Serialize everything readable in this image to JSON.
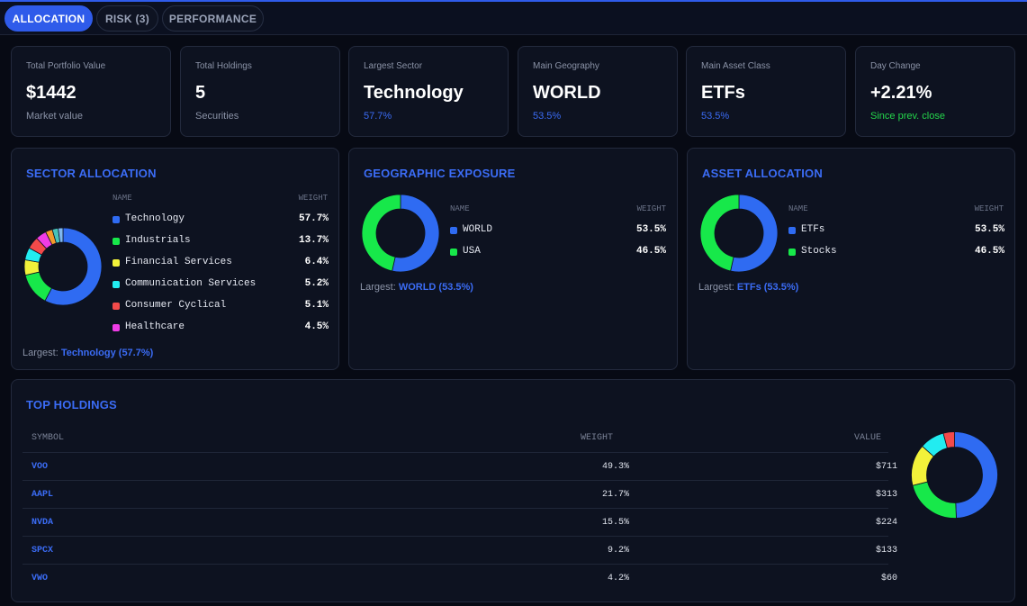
{
  "tabs": [
    {
      "label": "ALLOCATION",
      "active": true
    },
    {
      "label": "RISK (3)",
      "active": false
    },
    {
      "label": "PERFORMANCE",
      "active": false
    }
  ],
  "stats": [
    {
      "label": "Total Portfolio Value",
      "value": "$1442",
      "sub": "Market value"
    },
    {
      "label": "Total Holdings",
      "value": "5",
      "sub": "Securities"
    },
    {
      "label": "Largest Sector",
      "value": "Technology",
      "sub": "57.7%"
    },
    {
      "label": "Main Geography",
      "value": "WORLD",
      "sub": "53.5%"
    },
    {
      "label": "Main Asset Class",
      "value": "ETFs",
      "sub": "53.5%"
    },
    {
      "label": "Day Change",
      "value": "+2.21%",
      "sub": "Since prev. close"
    }
  ],
  "colors": {
    "accent": "#2f5bea",
    "blue": "#2f6bf2",
    "green": "#17e84a",
    "yellow": "#f2f23a",
    "cyan": "#22ecf0",
    "red": "#f24a4a",
    "magenta": "#f03ce6",
    "orange": "#f59a2a",
    "teal": "#48c2b8",
    "lightblue": "#7fb8f0"
  },
  "sector": {
    "title": "SECTOR ALLOCATION",
    "col_name": "NAME",
    "col_weight": "WEIGHT",
    "items": [
      {
        "name": "Technology",
        "weight": "57.7%",
        "color": "#2f6bf2"
      },
      {
        "name": "Industrials",
        "weight": "13.7%",
        "color": "#17e84a"
      },
      {
        "name": "Financial Services",
        "weight": "6.4%",
        "color": "#f2f23a"
      },
      {
        "name": "Communication Services",
        "weight": "5.2%",
        "color": "#22ecf0"
      },
      {
        "name": "Consumer Cyclical",
        "weight": "5.1%",
        "color": "#f24a4a"
      },
      {
        "name": "Healthcare",
        "weight": "4.5%",
        "color": "#f03ce6"
      }
    ],
    "largest_label": "Largest:",
    "largest_value": "Technology (57.7%)"
  },
  "geo": {
    "title": "GEOGRAPHIC EXPOSURE",
    "col_name": "NAME",
    "col_weight": "WEIGHT",
    "items": [
      {
        "name": "WORLD",
        "weight": "53.5%",
        "color": "#2f6bf2"
      },
      {
        "name": "USA",
        "weight": "46.5%",
        "color": "#17e84a"
      }
    ],
    "largest_label": "Largest:",
    "largest_value": "WORLD (53.5%)"
  },
  "asset": {
    "title": "ASSET ALLOCATION",
    "col_name": "NAME",
    "col_weight": "WEIGHT",
    "items": [
      {
        "name": "ETFs",
        "weight": "53.5%",
        "color": "#2f6bf2"
      },
      {
        "name": "Stocks",
        "weight": "46.5%",
        "color": "#17e84a"
      }
    ],
    "largest_label": "Largest:",
    "largest_value": "ETFs (53.5%)"
  },
  "holdings": {
    "title": "TOP HOLDINGS",
    "col_symbol": "SYMBOL",
    "col_weight": "WEIGHT",
    "col_value": "VALUE",
    "rows": [
      {
        "symbol": "VOO",
        "weight": "49.3%",
        "value": "$711"
      },
      {
        "symbol": "AAPL",
        "weight": "21.7%",
        "value": "$313"
      },
      {
        "symbol": "NVDA",
        "weight": "15.5%",
        "value": "$224"
      },
      {
        "symbol": "SPCX",
        "weight": "9.2%",
        "value": "$133"
      },
      {
        "symbol": "VWO",
        "weight": "4.2%",
        "value": "$60"
      }
    ]
  },
  "chart_data": [
    {
      "type": "pie",
      "name": "sector",
      "labels": [
        "Technology",
        "Industrials",
        "Financial Services",
        "Communication Services",
        "Consumer Cyclical",
        "Healthcare",
        "",
        "",
        ""
      ],
      "values": [
        57.7,
        13.7,
        6.4,
        5.2,
        5.1,
        4.5,
        2.9,
        2.5,
        2.0
      ],
      "colors": [
        "#2f6bf2",
        "#17e84a",
        "#f2f23a",
        "#22ecf0",
        "#f24a4a",
        "#f03ce6",
        "#f59a2a",
        "#48c2b8",
        "#7fb8f0"
      ]
    },
    {
      "type": "pie",
      "name": "geo",
      "labels": [
        "WORLD",
        "USA"
      ],
      "values": [
        53.5,
        46.5
      ],
      "colors": [
        "#2f6bf2",
        "#17e84a"
      ]
    },
    {
      "type": "pie",
      "name": "asset",
      "labels": [
        "ETFs",
        "Stocks"
      ],
      "values": [
        53.5,
        46.5
      ],
      "colors": [
        "#2f6bf2",
        "#17e84a"
      ]
    },
    {
      "type": "pie",
      "name": "holdings",
      "labels": [
        "VOO",
        "AAPL",
        "NVDA",
        "SPCX",
        "VWO"
      ],
      "values": [
        49.3,
        21.7,
        15.5,
        9.2,
        4.2
      ],
      "colors": [
        "#2f6bf2",
        "#17e84a",
        "#f2f23a",
        "#22ecf0",
        "#f24a4a"
      ]
    }
  ]
}
